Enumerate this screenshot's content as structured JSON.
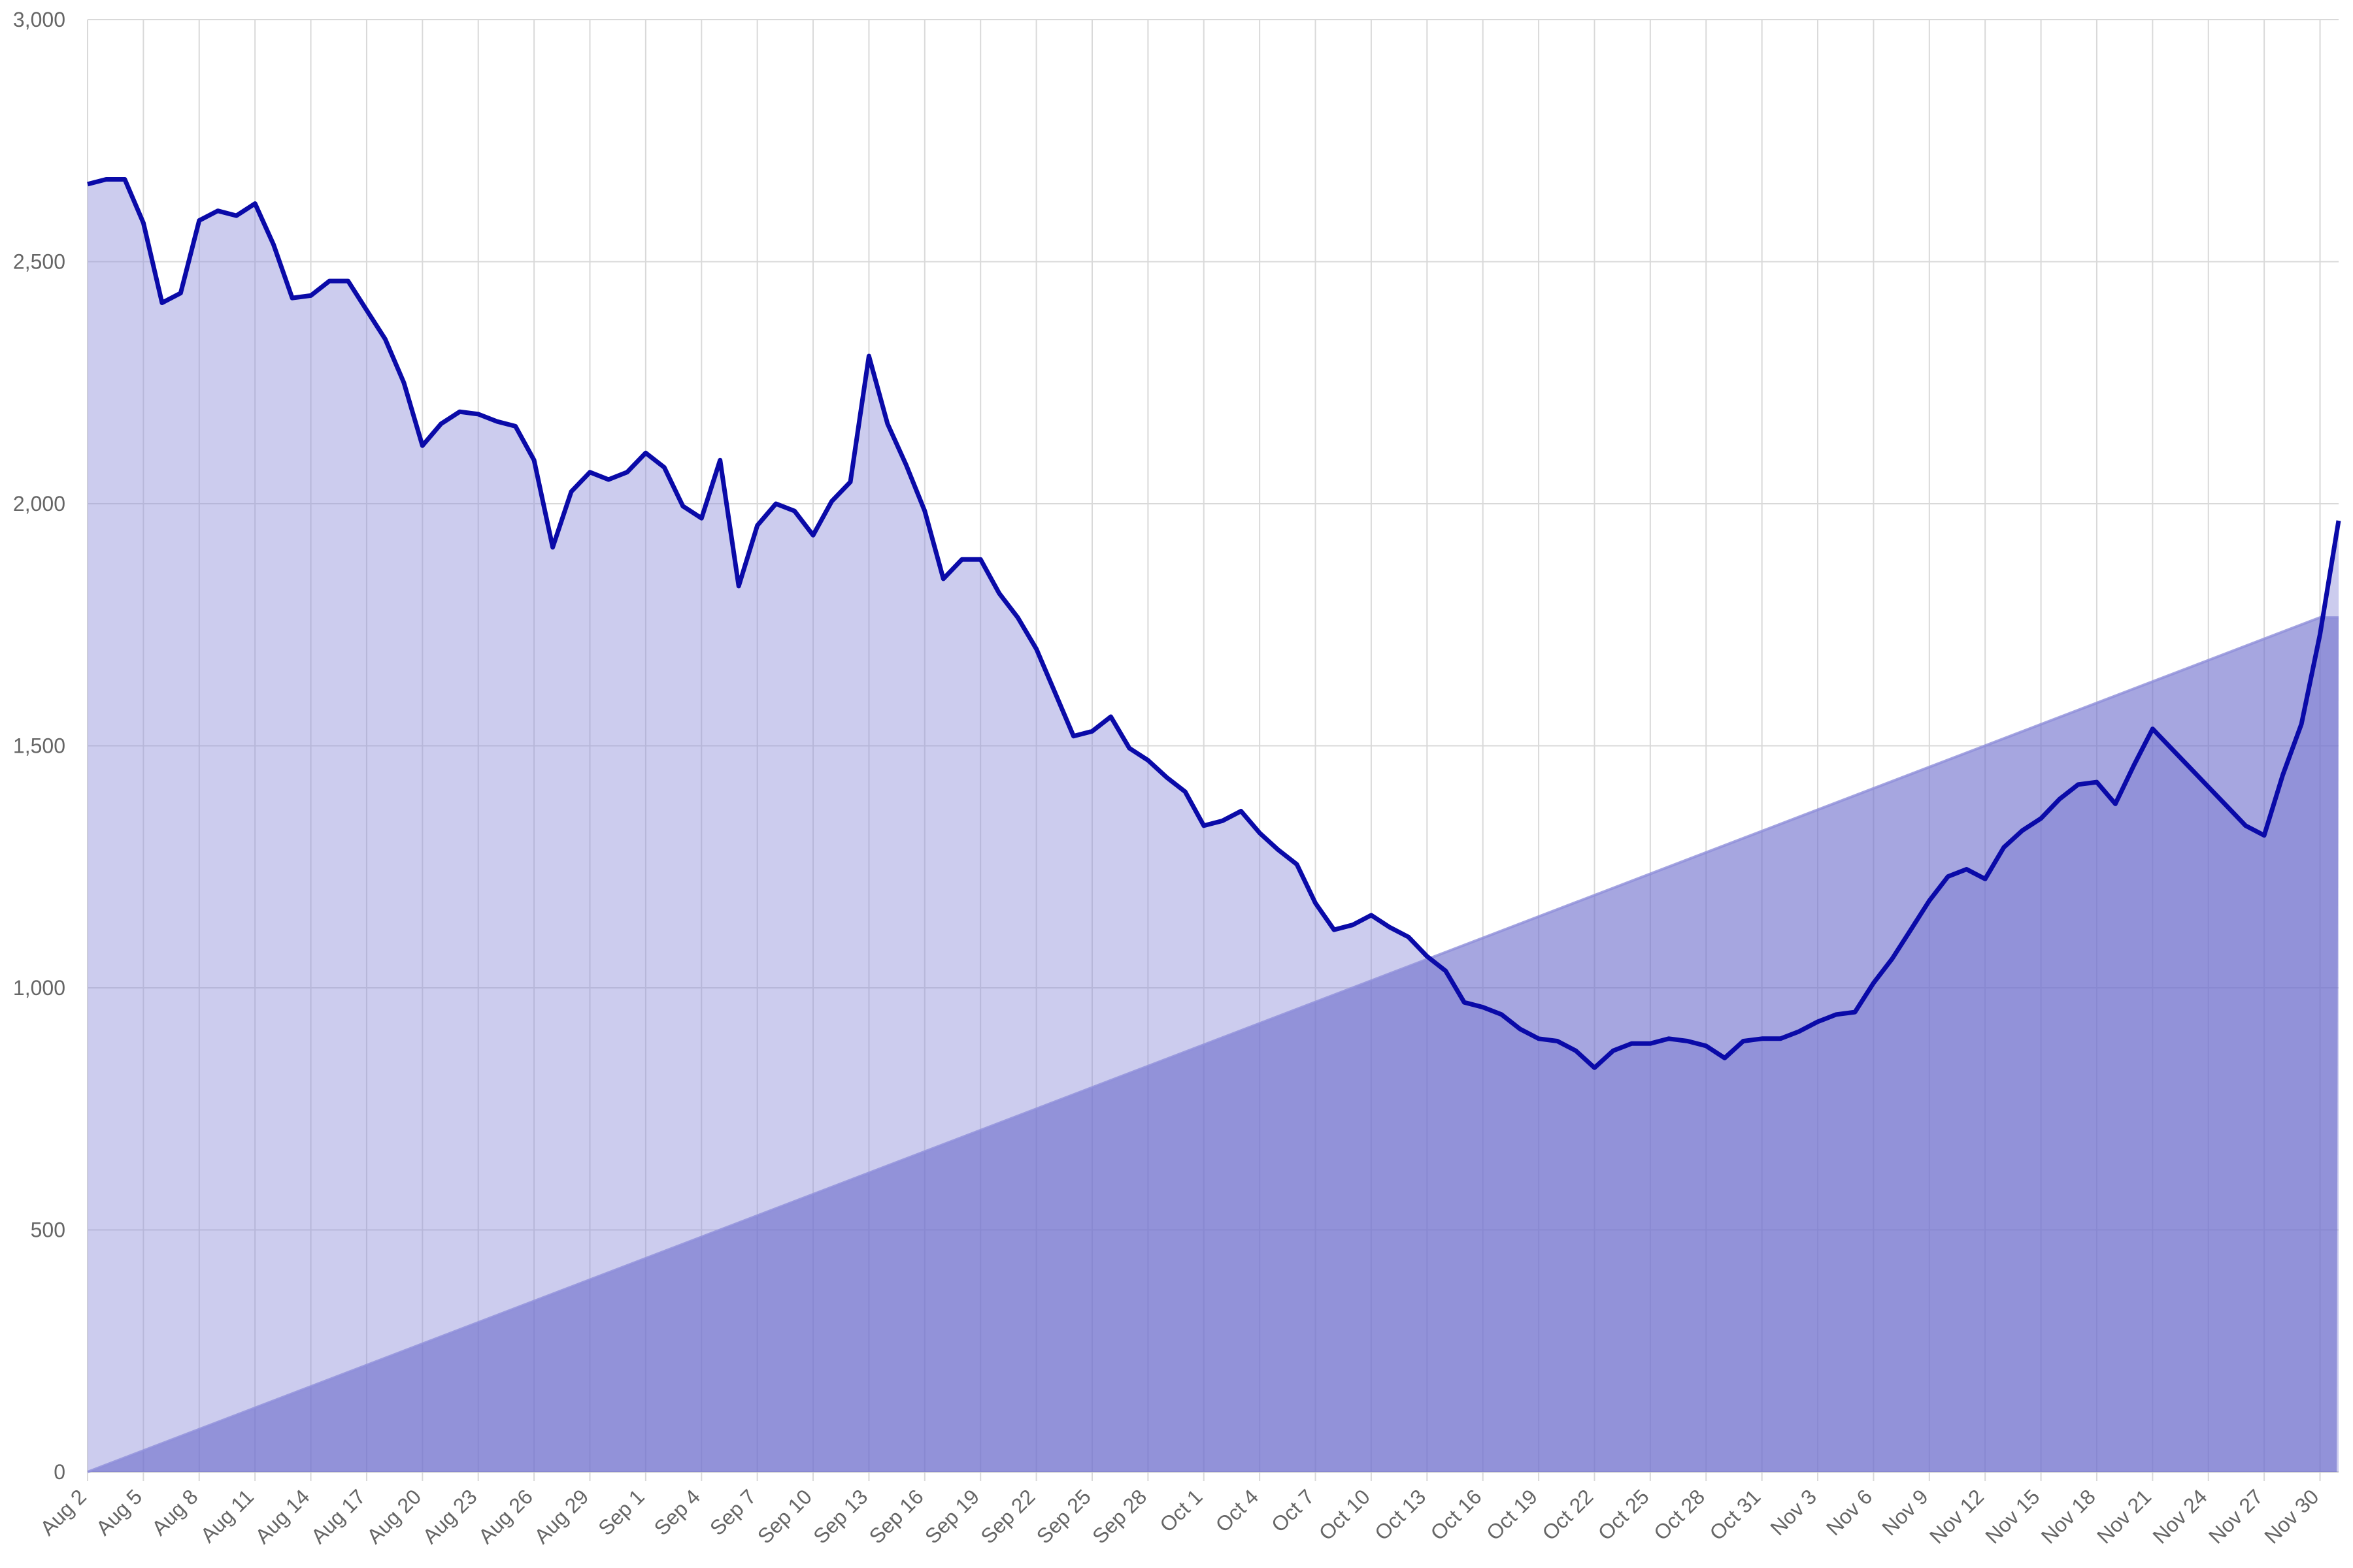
{
  "chart_data": {
    "type": "area",
    "x_axis": {
      "start_date": "2023-08-02",
      "end_date": "2023-11-30",
      "tick_step_days": 3,
      "tick_labels": [
        "Aug 2",
        "Aug 5",
        "Aug 8",
        "Aug 11",
        "Aug 14",
        "Aug 17",
        "Aug 20",
        "Aug 23",
        "Aug 26",
        "Aug 29",
        "Sep 1",
        "Sep 4",
        "Sep 7",
        "Sep 10",
        "Sep 13",
        "Sep 16",
        "Sep 19",
        "Sep 22",
        "Sep 25",
        "Sep 28",
        "Oct 1",
        "Oct 4",
        "Oct 7",
        "Oct 10",
        "Oct 13",
        "Oct 16",
        "Oct 19",
        "Oct 22",
        "Oct 25",
        "Oct 28",
        "Oct 31",
        "Nov 3",
        "Nov 6",
        "Nov 9",
        "Nov 12",
        "Nov 15",
        "Nov 18",
        "Nov 21",
        "Nov 24",
        "Nov 27",
        "Nov 30"
      ],
      "grid": true
    },
    "y_axis": {
      "ylim": [
        0,
        3000
      ],
      "ticks": [
        0,
        500,
        1000,
        1500,
        2000,
        2500,
        3000
      ],
      "tick_labels": [
        "0",
        "500",
        "1,000",
        "1,500",
        "2,000",
        "2,500",
        "3,000"
      ],
      "grid": true
    },
    "series": [
      {
        "line_color": "#0a0aa8",
        "fill_color": "#8f8fda",
        "fill_opacity": 0.45,
        "values": [
          2660,
          2670,
          2670,
          2580,
          2415,
          2435,
          2585,
          2605,
          2595,
          2620,
          2535,
          2425,
          2430,
          2460,
          2460,
          2400,
          2340,
          2250,
          2120,
          2165,
          2190,
          2185,
          2170,
          2160,
          2090,
          1910,
          2025,
          2065,
          2050,
          2065,
          2105,
          2075,
          1995,
          1970,
          2090,
          1830,
          1955,
          2000,
          1985,
          1935,
          2005,
          2045,
          2305,
          2165,
          2080,
          1985,
          1845,
          1885,
          1885,
          1815,
          1765,
          1700,
          1610,
          1520,
          1530,
          1560,
          1495,
          1470,
          1435,
          1405,
          1335,
          1345,
          1365,
          1320,
          1285,
          1255,
          1175,
          1120,
          1130,
          1150,
          1125,
          1105,
          1065,
          1035,
          970,
          960,
          945,
          915,
          895,
          890,
          870,
          835,
          870,
          885,
          885,
          895,
          890,
          880,
          855,
          890,
          895,
          895,
          910,
          930,
          945,
          950,
          1010,
          1060,
          1120,
          1180,
          1230,
          1245,
          1225,
          1290,
          1325,
          1350,
          1390,
          1420,
          1425,
          1380,
          1460,
          1535,
          1495,
          1455,
          1415,
          1375,
          1335,
          1315,
          1440,
          1545,
          1730,
          1965
        ]
      },
      {
        "line_color": "#8f8fda",
        "fill_color": "#6a6acc",
        "fill_opacity": 0.6,
        "values_start": 0,
        "values_end": 1765,
        "tail_values": [
          1765,
          0
        ]
      }
    ]
  }
}
